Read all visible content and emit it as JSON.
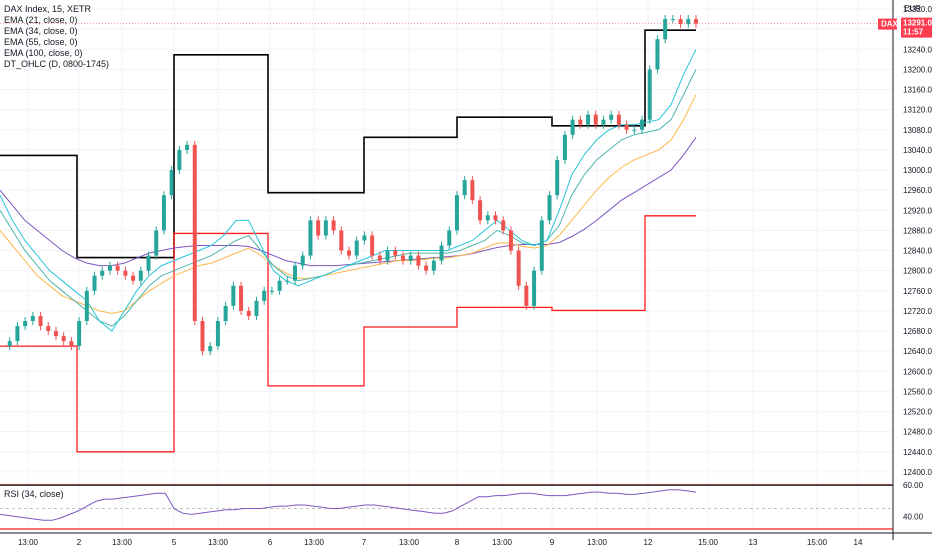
{
  "header": {
    "symbol_line": "DAX Index, 15, XETR",
    "indicators": [
      "EMA (21, close, 0)",
      "EMA (34, close, 0)",
      "EMA (55, close, 0)",
      "EMA (100, close, 0)",
      "DT_OHLC (D, 0800-1745)"
    ],
    "rsi_label": "RSI (34, close)"
  },
  "price_scale": {
    "currency": "EUR",
    "ticks": [
      "13320.00",
      "13280.00",
      "13240.00",
      "13200.00",
      "13160.00",
      "13120.00",
      "13080.00",
      "13040.00",
      "13000.00",
      "12960.00",
      "12920.00",
      "12880.00",
      "12840.00",
      "12800.00",
      "12760.00",
      "12720.00",
      "12680.00",
      "12640.00",
      "12600.00",
      "12560.00",
      "12520.00",
      "12480.00",
      "12440.00",
      "12400.00"
    ],
    "last_label": "DAX",
    "last_price": "13291.03",
    "countdown": "11:57"
  },
  "rsi_scale": {
    "ticks": [
      "60.00",
      "40.00"
    ]
  },
  "time_axis": {
    "ticks": [
      "13:00",
      "2",
      "13:00",
      "5",
      "13:00",
      "6",
      "13:00",
      "7",
      "13:00",
      "8",
      "13:00",
      "9",
      "13:00",
      "12",
      "15:00",
      "13",
      "15:00",
      "14"
    ]
  },
  "colors": {
    "up": "#26a69a",
    "down": "#ef5350",
    "ema21": "#26c6da",
    "ema34": "#4db6ac",
    "ema55": "#ffb74d",
    "ema100": "#7e57c2",
    "day_high": "#000000",
    "day_low": "#ff1a1a",
    "rsi": "#7e57c2",
    "badge": "#ff3b50"
  },
  "chart_data": {
    "type": "candlestick",
    "symbol": "DAX Index",
    "interval": "15",
    "exchange": "XETR",
    "y_range": [
      12380,
      13330
    ],
    "x_labels": [
      "13:00",
      "2",
      "13:00",
      "5",
      "13:00",
      "6",
      "13:00",
      "7",
      "13:00",
      "8",
      "13:00",
      "9",
      "13:00",
      "12",
      "15:00",
      "13",
      "15:00",
      "14"
    ],
    "close_path": [
      12650,
      12660,
      12690,
      12700,
      12710,
      12690,
      12680,
      12670,
      12660,
      12650,
      12700,
      12760,
      12790,
      12800,
      12810,
      12800,
      12790,
      12780,
      12800,
      12830,
      12880,
      12950,
      13000,
      13040,
      13050,
      12700,
      12640,
      12650,
      12700,
      12730,
      12770,
      12720,
      12710,
      12740,
      12760,
      12760,
      12780,
      12780,
      12810,
      12830,
      12900,
      12870,
      12900,
      12880,
      12840,
      12830,
      12860,
      12870,
      12830,
      12820,
      12840,
      12830,
      12820,
      12830,
      12810,
      12800,
      12820,
      12850,
      12880,
      12950,
      12980,
      12940,
      12900,
      12910,
      12900,
      12880,
      12840,
      12770,
      12730,
      12800,
      12900,
      12950,
      13020,
      13070,
      13100,
      13090,
      13110,
      13090,
      13100,
      13110,
      13090,
      13080,
      13080,
      13100,
      13200,
      13260,
      13300,
      13300,
      13290,
      13300,
      13291
    ],
    "day_high": [
      {
        "x0": 0,
        "x1": 77,
        "y": 13029
      },
      {
        "x0": 77,
        "x1": 174,
        "y": 12826
      },
      {
        "x0": 174,
        "x1": 268,
        "y": 13229
      },
      {
        "x0": 268,
        "x1": 364,
        "y": 12955
      },
      {
        "x0": 364,
        "x1": 457,
        "y": 13065
      },
      {
        "x0": 457,
        "x1": 552,
        "y": 13105
      },
      {
        "x0": 552,
        "x1": 645,
        "y": 13088
      },
      {
        "x0": 645,
        "x1": 696,
        "y": 13278
      }
    ],
    "day_low": [
      {
        "x0": 0,
        "x1": 77,
        "y": 12650
      },
      {
        "x0": 77,
        "x1": 174,
        "y": 12440
      },
      {
        "x0": 174,
        "x1": 268,
        "y": 12874
      },
      {
        "x0": 268,
        "x1": 364,
        "y": 12571
      },
      {
        "x0": 364,
        "x1": 457,
        "y": 12688
      },
      {
        "x0": 457,
        "x1": 552,
        "y": 12727
      },
      {
        "x0": 552,
        "x1": 645,
        "y": 12721
      },
      {
        "x0": 645,
        "x1": 696,
        "y": 12909
      }
    ],
    "ema21": [
      12950,
      12900,
      12860,
      12830,
      12800,
      12780,
      12760,
      12740,
      12700,
      12680,
      12720,
      12760,
      12790,
      12810,
      12820,
      12830,
      12840,
      12850,
      12870,
      12900,
      12900,
      12850,
      12800,
      12780,
      12770,
      12780,
      12790,
      12800,
      12810,
      12820,
      12830,
      12840,
      12840,
      12840,
      12840,
      12840,
      12840,
      12850,
      12860,
      12880,
      12900,
      12880,
      12860,
      12850,
      12860,
      12920,
      12990,
      13030,
      13060,
      13080,
      13090,
      13090,
      13095,
      13100,
      13130,
      13190,
      13240
    ],
    "ema34": [
      12920,
      12880,
      12840,
      12810,
      12780,
      12760,
      12740,
      12720,
      12700,
      12690,
      12710,
      12740,
      12770,
      12790,
      12800,
      12810,
      12820,
      12830,
      12845,
      12860,
      12870,
      12840,
      12810,
      12790,
      12780,
      12785,
      12790,
      12800,
      12810,
      12815,
      12820,
      12825,
      12830,
      12835,
      12835,
      12835,
      12835,
      12840,
      12850,
      12860,
      12880,
      12870,
      12855,
      12850,
      12860,
      12890,
      12950,
      12990,
      13020,
      13040,
      13060,
      13070,
      13075,
      13080,
      13100,
      13150,
      13200
    ],
    "ema55": [
      12880,
      12850,
      12820,
      12790,
      12770,
      12750,
      12740,
      12730,
      12720,
      12715,
      12720,
      12740,
      12760,
      12775,
      12790,
      12800,
      12810,
      12815,
      12825,
      12835,
      12845,
      12830,
      12810,
      12795,
      12785,
      12785,
      12790,
      12795,
      12800,
      12805,
      12810,
      12815,
      12820,
      12820,
      12822,
      12825,
      12825,
      12830,
      12835,
      12845,
      12855,
      12855,
      12848,
      12845,
      12850,
      12870,
      12900,
      12930,
      12960,
      12985,
      13005,
      13020,
      13030,
      13040,
      13060,
      13100,
      13150
    ],
    "ema100": [
      12960,
      12930,
      12900,
      12880,
      12860,
      12840,
      12825,
      12815,
      12810,
      12810,
      12815,
      12825,
      12835,
      12840,
      12845,
      12848,
      12850,
      12850,
      12850,
      12850,
      12848,
      12840,
      12830,
      12820,
      12815,
      12810,
      12810,
      12810,
      12812,
      12814,
      12816,
      12818,
      12820,
      12822,
      12824,
      12826,
      12828,
      12830,
      12834,
      12840,
      12846,
      12850,
      12852,
      12852,
      12852,
      12856,
      12868,
      12882,
      12900,
      12920,
      12940,
      12955,
      12970,
      12985,
      13000,
      13030,
      13065
    ],
    "rsi": [
      45,
      44,
      43,
      42,
      41,
      40,
      40,
      42,
      45,
      48,
      52,
      56,
      58,
      58,
      59,
      60,
      61,
      62,
      63,
      63,
      50,
      46,
      45,
      46,
      47,
      48,
      49,
      49,
      50,
      50,
      50,
      51,
      52,
      52,
      53,
      53,
      52,
      51,
      50,
      50,
      51,
      52,
      53,
      53,
      52,
      51,
      50,
      49,
      48,
      47,
      46,
      46,
      48,
      52,
      56,
      60,
      60,
      61,
      61,
      62,
      63,
      63,
      62,
      61,
      61,
      61,
      62,
      63,
      64,
      64,
      63,
      63,
      62,
      62,
      63,
      64,
      65,
      66,
      66,
      65,
      64
    ]
  }
}
